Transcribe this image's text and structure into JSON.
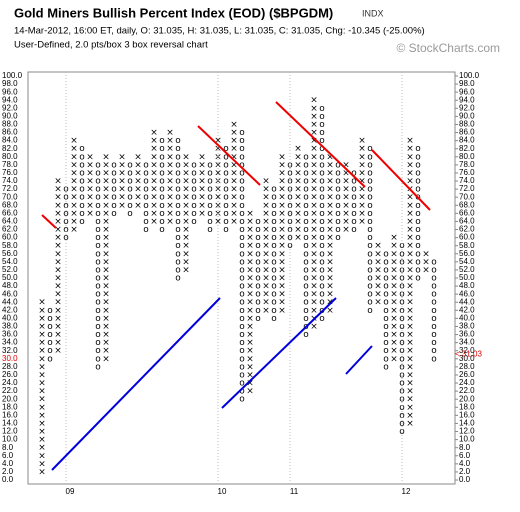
{
  "chart_data": {
    "type": "pnf",
    "title": "Gold Miners Bullish Percent Index (EOD) ($BPGDM)",
    "exchange": "INDX",
    "subtitle": "14-Mar-2012, 16:00 ET, daily, O: 31.035, H: 31.035, L: 31.035, C: 31.035, Chg: -10.345 (-25.00%)",
    "description": "User-Defined, 2.0 pts/box 3 box reversal chart",
    "watermark": "© StockCharts.com",
    "box_size": 2,
    "ylim": [
      0,
      100
    ],
    "yticks": [
      {
        "value": 100,
        "label": "100.0"
      },
      {
        "value": 98,
        "label": "98.0"
      },
      {
        "value": 96,
        "label": "96.0"
      },
      {
        "value": 94,
        "label": "94.0"
      },
      {
        "value": 92,
        "label": "92.0"
      },
      {
        "value": 90,
        "label": "90.0"
      },
      {
        "value": 88,
        "label": "88.0"
      },
      {
        "value": 86,
        "label": "86.0"
      },
      {
        "value": 84,
        "label": "84.0"
      },
      {
        "value": 82,
        "label": "82.0"
      },
      {
        "value": 80,
        "label": "80.0"
      },
      {
        "value": 78,
        "label": "78.0"
      },
      {
        "value": 76,
        "label": "76.0"
      },
      {
        "value": 74,
        "label": "74.0"
      },
      {
        "value": 72,
        "label": "72.0"
      },
      {
        "value": 70,
        "label": "70.0"
      },
      {
        "value": 68,
        "label": "68.0"
      },
      {
        "value": 66,
        "label": "66.0"
      },
      {
        "value": 64,
        "label": "64.0"
      },
      {
        "value": 62,
        "label": "62.0"
      },
      {
        "value": 60,
        "label": "60.0"
      },
      {
        "value": 58,
        "label": "58.0"
      },
      {
        "value": 56,
        "label": "56.0"
      },
      {
        "value": 54,
        "label": "54.0"
      },
      {
        "value": 52,
        "label": "52.0"
      },
      {
        "value": 50,
        "label": "50.0"
      },
      {
        "value": 48,
        "label": "48.0"
      },
      {
        "value": 46,
        "label": "46.0"
      },
      {
        "value": 44,
        "label": "44.0"
      },
      {
        "value": 42,
        "label": "42.0"
      },
      {
        "value": 40,
        "label": "40.0"
      },
      {
        "value": 38,
        "label": "38.0"
      },
      {
        "value": 36,
        "label": "36.0"
      },
      {
        "value": 34,
        "label": "34.0"
      },
      {
        "value": 32,
        "label": "32.0"
      },
      {
        "value": 30,
        "label": "30.0"
      },
      {
        "value": 28,
        "label": "28.0"
      },
      {
        "value": 26,
        "label": "26.0"
      },
      {
        "value": 24,
        "label": "24.0"
      },
      {
        "value": 22,
        "label": "22.0"
      },
      {
        "value": 20,
        "label": "20.0"
      },
      {
        "value": 18,
        "label": "18.0"
      },
      {
        "value": 16,
        "label": "16.0"
      },
      {
        "value": 14,
        "label": "14.0"
      },
      {
        "value": 12,
        "label": "12.0"
      },
      {
        "value": 10,
        "label": "10.0"
      },
      {
        "value": 8,
        "label": "8.0"
      },
      {
        "value": 6,
        "label": "6.0"
      },
      {
        "value": 4,
        "label": "4.0"
      },
      {
        "value": 2,
        "label": "2.0"
      },
      {
        "value": 0,
        "label": "0.0"
      }
    ],
    "last_price": {
      "value": 31.03,
      "label": "< 31.03"
    },
    "x_labels": [
      "09",
      "10",
      "11",
      "12"
    ],
    "columns": [
      {
        "type": "X",
        "low": 2,
        "high": 44
      },
      {
        "type": "O",
        "low": 30,
        "high": 42
      },
      {
        "type": "X",
        "low": 32,
        "high": 74
      },
      {
        "type": "O",
        "low": 60,
        "high": 72
      },
      {
        "type": "X",
        "low": 62,
        "high": 84
      },
      {
        "type": "O",
        "low": 64,
        "high": 82
      },
      {
        "type": "X",
        "low": 66,
        "high": 80
      },
      {
        "type": "O",
        "low": 28,
        "high": 78
      },
      {
        "type": "X",
        "low": 30,
        "high": 80
      },
      {
        "type": "O",
        "low": 66,
        "high": 78
      },
      {
        "type": "X",
        "low": 68,
        "high": 80
      },
      {
        "type": "O",
        "low": 66,
        "high": 78
      },
      {
        "type": "X",
        "low": 68,
        "high": 80
      },
      {
        "type": "O",
        "low": 62,
        "high": 78
      },
      {
        "type": "X",
        "low": 64,
        "high": 86
      },
      {
        "type": "O",
        "low": 62,
        "high": 84
      },
      {
        "type": "X",
        "low": 64,
        "high": 86
      },
      {
        "type": "O",
        "low": 50,
        "high": 84
      },
      {
        "type": "X",
        "low": 52,
        "high": 80
      },
      {
        "type": "O",
        "low": 64,
        "high": 78
      },
      {
        "type": "X",
        "low": 66,
        "high": 80
      },
      {
        "type": "O",
        "low": 62,
        "high": 78
      },
      {
        "type": "X",
        "low": 64,
        "high": 84
      },
      {
        "type": "O",
        "low": 62,
        "high": 82
      },
      {
        "type": "X",
        "low": 64,
        "high": 88
      },
      {
        "type": "O",
        "low": 20,
        "high": 86
      },
      {
        "type": "X",
        "low": 22,
        "high": 66
      },
      {
        "type": "O",
        "low": 40,
        "high": 64
      },
      {
        "type": "X",
        "low": 42,
        "high": 74
      },
      {
        "type": "O",
        "low": 40,
        "high": 72
      },
      {
        "type": "X",
        "low": 42,
        "high": 80
      },
      {
        "type": "O",
        "low": 58,
        "high": 78
      },
      {
        "type": "X",
        "low": 60,
        "high": 82
      },
      {
        "type": "O",
        "low": 36,
        "high": 80
      },
      {
        "type": "X",
        "low": 38,
        "high": 94
      },
      {
        "type": "O",
        "low": 40,
        "high": 92
      },
      {
        "type": "X",
        "low": 42,
        "high": 80
      },
      {
        "type": "O",
        "low": 60,
        "high": 78
      },
      {
        "type": "X",
        "low": 62,
        "high": 78
      },
      {
        "type": "O",
        "low": 62,
        "high": 76
      },
      {
        "type": "X",
        "low": 64,
        "high": 84
      },
      {
        "type": "O",
        "low": 42,
        "high": 82
      },
      {
        "type": "X",
        "low": 44,
        "high": 58
      },
      {
        "type": "O",
        "low": 28,
        "high": 56
      },
      {
        "type": "X",
        "low": 30,
        "high": 60
      },
      {
        "type": "O",
        "low": 12,
        "high": 58
      },
      {
        "type": "X",
        "low": 14,
        "high": 84
      },
      {
        "type": "O",
        "low": 50,
        "high": 82
      },
      {
        "type": "X",
        "low": 52,
        "high": 56
      },
      {
        "type": "O",
        "low": 30,
        "high": 54
      }
    ]
  }
}
